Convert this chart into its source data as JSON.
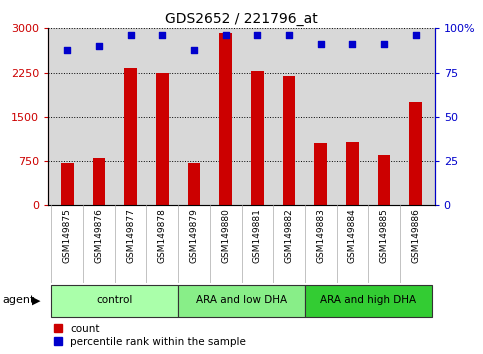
{
  "title": "GDS2652 / 221796_at",
  "samples": [
    "GSM149875",
    "GSM149876",
    "GSM149877",
    "GSM149878",
    "GSM149879",
    "GSM149880",
    "GSM149881",
    "GSM149882",
    "GSM149883",
    "GSM149884",
    "GSM149885",
    "GSM149886"
  ],
  "counts": [
    720,
    810,
    2320,
    2250,
    720,
    2920,
    2270,
    2190,
    1050,
    1080,
    850,
    1750
  ],
  "percentiles": [
    88,
    90,
    96,
    96,
    88,
    96,
    96,
    96,
    91,
    91,
    91,
    96
  ],
  "bar_color": "#cc0000",
  "dot_color": "#0000cc",
  "ylim_left": [
    0,
    3000
  ],
  "ylim_right": [
    0,
    100
  ],
  "yticks_left": [
    0,
    750,
    1500,
    2250,
    3000
  ],
  "yticks_right": [
    0,
    25,
    50,
    75,
    100
  ],
  "ytick_labels_right": [
    "0",
    "25",
    "50",
    "75",
    "100%"
  ],
  "groups": [
    {
      "label": "control",
      "start": 0,
      "end": 3,
      "color": "#aaffaa"
    },
    {
      "label": "ARA and low DHA",
      "start": 4,
      "end": 7,
      "color": "#88ee88"
    },
    {
      "label": "ARA and high DHA",
      "start": 8,
      "end": 11,
      "color": "#33cc33"
    }
  ],
  "agent_label": "agent",
  "legend_items": [
    {
      "color": "#cc0000",
      "label": "count"
    },
    {
      "color": "#0000cc",
      "label": "percentile rank within the sample"
    }
  ],
  "chart_bg_color": "#d8d8d8",
  "tick_bg_color": "#c8c8c8",
  "grid_color": "#000000",
  "title_color": "#000000",
  "left_tick_color": "#cc0000",
  "right_tick_color": "#0000cc",
  "bar_width": 0.4
}
